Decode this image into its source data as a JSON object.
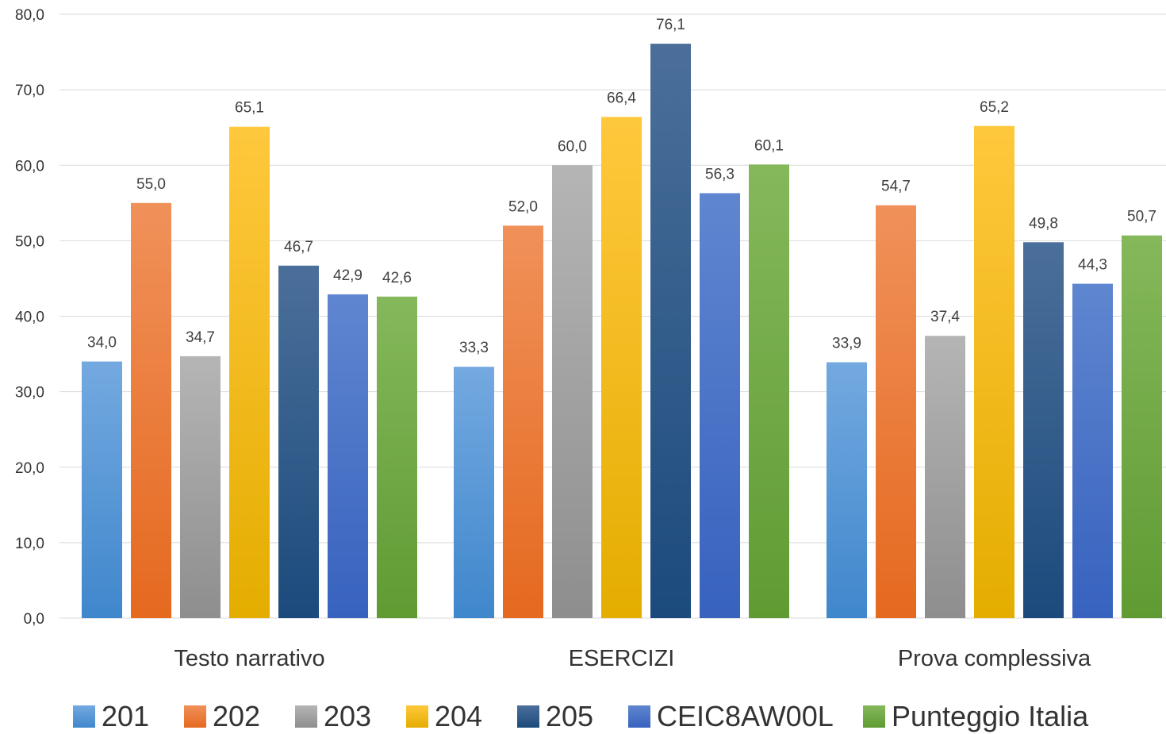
{
  "chart_data": {
    "type": "bar",
    "title": "",
    "xlabel": "",
    "ylabel": "",
    "ylim": [
      0,
      80
    ],
    "yticks": [
      "0,0",
      "10,0",
      "20,0",
      "30,0",
      "40,0",
      "50,0",
      "60,0",
      "70,0",
      "80,0"
    ],
    "grid": true,
    "legend_position": "bottom",
    "categories": [
      "Testo narrativo",
      "ESERCIZI",
      "Prova complessiva"
    ],
    "series": [
      {
        "name": "201",
        "values": [
          34.0,
          33.3,
          33.9
        ],
        "labels": [
          "34,0",
          "33,3",
          "33,9"
        ],
        "color_top": "#74a9e0",
        "color_bottom": "#3f87cc"
      },
      {
        "name": "202",
        "values": [
          55.0,
          52.0,
          54.7
        ],
        "labels": [
          "55,0",
          "52,0",
          "54,7"
        ],
        "color_top": "#f0915a",
        "color_bottom": "#e5691f"
      },
      {
        "name": "203",
        "values": [
          34.7,
          60.0,
          37.4
        ],
        "labels": [
          "34,7",
          "60,0",
          "37,4"
        ],
        "color_top": "#b5b5b5",
        "color_bottom": "#8e8e8e"
      },
      {
        "name": "204",
        "values": [
          65.1,
          66.4,
          65.2
        ],
        "labels": [
          "65,1",
          "66,4",
          "65,2"
        ],
        "color_top": "#ffc83d",
        "color_bottom": "#e4ad00"
      },
      {
        "name": "205",
        "values": [
          46.7,
          76.1,
          49.8
        ],
        "labels": [
          "46,7",
          "76,1",
          "49,8"
        ],
        "color_top": "#4b6f9a",
        "color_bottom": "#1b4a7c"
      },
      {
        "name": "CEIC8AW00L",
        "values": [
          42.9,
          56.3,
          44.3
        ],
        "labels": [
          "42,9",
          "56,3",
          "44,3"
        ],
        "color_top": "#5f86d0",
        "color_bottom": "#3762be"
      },
      {
        "name": "Punteggio Italia",
        "values": [
          42.6,
          60.1,
          50.7
        ],
        "labels": [
          "42,6",
          "60,1",
          "50,7"
        ],
        "color_top": "#85b85b",
        "color_bottom": "#5f9b32"
      }
    ]
  }
}
